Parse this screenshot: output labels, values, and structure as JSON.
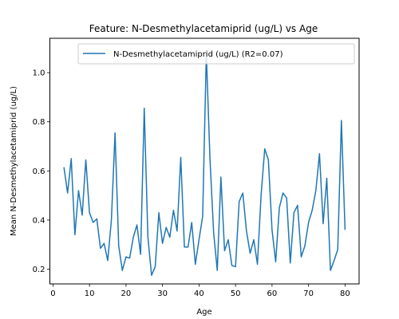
{
  "chart_data": {
    "type": "line",
    "title": "Feature: N-Desmethylacetamiprid (ug/L) vs Age",
    "xlabel": "Age",
    "ylabel": "Mean N-Desmethylacetamiprid (ug/L)",
    "xlim": [
      -0.85,
      83.85
    ],
    "ylim": [
      0.14,
      1.14
    ],
    "xticks": [
      0,
      10,
      20,
      30,
      40,
      50,
      60,
      70,
      80
    ],
    "yticks": [
      0.2,
      0.4,
      0.6,
      0.8,
      1.0
    ],
    "ytick_labels": [
      "0.2",
      "0.4",
      "0.6",
      "0.8",
      "1.0"
    ],
    "grid": false,
    "legend_position": "top-right",
    "color": "#1f77b4",
    "series": [
      {
        "name": "N-Desmethylacetamiprid (ug/L) (R2=0.07)",
        "x": [
          3,
          4,
          5,
          6,
          7,
          8,
          9,
          10,
          11,
          12,
          13,
          14,
          15,
          16,
          17,
          18,
          19,
          20,
          21,
          22,
          23,
          24,
          25,
          26,
          27,
          28,
          29,
          30,
          31,
          32,
          33,
          34,
          35,
          36,
          37,
          38,
          39,
          40,
          41,
          42,
          43,
          44,
          45,
          46,
          47,
          48,
          49,
          50,
          51,
          52,
          53,
          54,
          55,
          56,
          57,
          58,
          59,
          60,
          61,
          62,
          63,
          64,
          65,
          66,
          67,
          68,
          69,
          70,
          71,
          72,
          73,
          74,
          75,
          76,
          77,
          78,
          79,
          80
        ],
        "y": [
          0.615,
          0.51,
          0.65,
          0.34,
          0.52,
          0.42,
          0.645,
          0.43,
          0.39,
          0.405,
          0.285,
          0.305,
          0.235,
          0.4,
          0.755,
          0.295,
          0.195,
          0.25,
          0.245,
          0.33,
          0.38,
          0.26,
          0.855,
          0.33,
          0.175,
          0.21,
          0.43,
          0.305,
          0.37,
          0.33,
          0.44,
          0.355,
          0.655,
          0.29,
          0.29,
          0.39,
          0.22,
          0.32,
          0.415,
          1.08,
          0.65,
          0.35,
          0.195,
          0.575,
          0.275,
          0.32,
          0.215,
          0.21,
          0.475,
          0.51,
          0.355,
          0.265,
          0.32,
          0.22,
          0.5,
          0.69,
          0.645,
          0.36,
          0.23,
          0.45,
          0.51,
          0.49,
          0.225,
          0.43,
          0.46,
          0.25,
          0.295,
          0.39,
          0.44,
          0.52,
          0.67,
          0.385,
          0.57,
          0.195,
          0.235,
          0.28,
          0.805,
          0.36
        ]
      }
    ]
  }
}
